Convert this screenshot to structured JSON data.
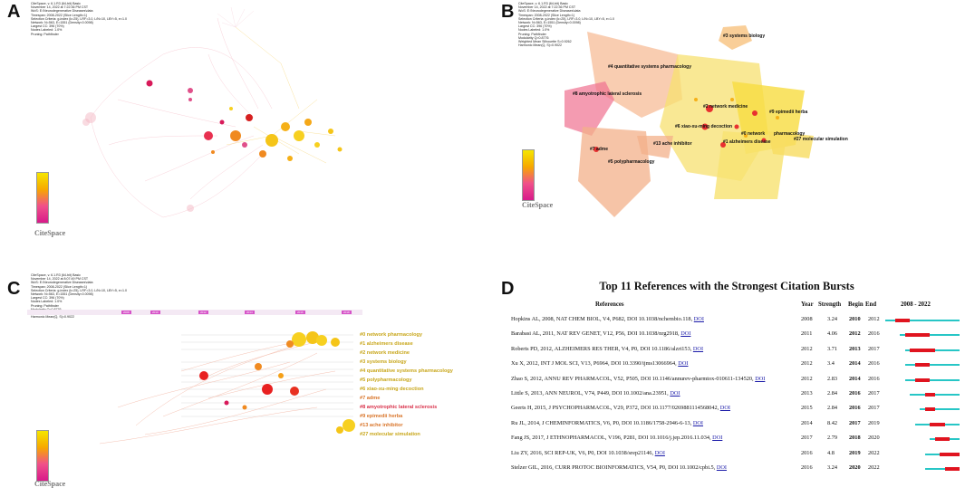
{
  "panels": {
    "a": {
      "letter": "A"
    },
    "b": {
      "letter": "B"
    },
    "c": {
      "letter": "C"
    },
    "d": {
      "letter": "D"
    }
  },
  "citespace_meta": {
    "a": [
      "CiteSpace, v. 6.1.R3 (64-bit) Basic",
      "November 14, 2022 at 7:22:36 PM CST",
      "WoS: E:\\Neurodegenerative Diseases\\data",
      "Timespan: 2008-2022 (Slice Length=1)",
      "Selection Criteria: g-index (k=25), LRF=3.0, L/N=10, LBY=5, e=1.0",
      "Network: N=563, E=1551 (Density=0.0098)",
      "Largest CC: 396 (70%)",
      "Nodes Labeled: 1.0%",
      "Pruning: Pathfinder"
    ],
    "b": [
      "CiteSpace, v. 6.1.R3 (64-bit) Basic",
      "November 14, 2022 at 7:22:36 PM CST",
      "WoS: E:\\Neurodegenerative Diseases\\data",
      "Timespan: 2008-2022 (Slice Length=1)",
      "Selection Criteria: g-index (k=25), LRF=3.0, L/N=10, LBY=5, e=1.0",
      "Network: N=563, E=1551 (Density=0.0098)",
      "Largest CC: 396 (70%)",
      "Nodes Labeled: 1.0%",
      "Pruning: Pathfinder",
      "Modularity Q=0.8776",
      "Weighted Mean Silhouette S=0.9262",
      "Harmonic Mean(Q, S)=0.9022"
    ],
    "c": [
      "CiteSpace, v. 6.1.R3 (64-bit) Basic",
      "November 14, 2022 at 8:07:49 PM CST",
      "WoS: E:\\Neurodegenerative Diseases\\data",
      "Timespan: 2008-2022 (Slice Length=1)",
      "Selection Criteria: g-index (k=25), LRF=3.0, L/N=10, LBY=5, e=1.0",
      "Network: N=563, E=1551 (Density=0.0098)",
      "Largest CC: 396 (70%)",
      "Nodes Labeled: 1.0%",
      "Pruning: Pathfinder",
      "Modularity Q=0.8776",
      "Weighted Mean Silhouette S=0.9262",
      "Harmonic Mean(Q, S)=0.9022"
    ]
  },
  "logo_text": "CiteSpace",
  "clusters_b": [
    "#3 systems biology",
    "#4 quantitative systems pharmacology",
    "#8 amyotrophic lateral sclerosis",
    "#2 network medicine",
    "#9 epimedii herba",
    "#6 xiao-xu-ming decoction",
    "#0 network",
    "pharmacology",
    "#1 alzheimers disease",
    "#27 molecular simulation",
    "#13 ache inhibitor",
    "#7 adme",
    "#5 polypharmacology"
  ],
  "clusters_c": [
    {
      "label": "#0 network   pharmacology",
      "color": "#c8a61a"
    },
    {
      "label": "#1 alzheimers disease",
      "color": "#c8a61a"
    },
    {
      "label": "#2 network medicine",
      "color": "#c8a61a"
    },
    {
      "label": "#3 systems biology",
      "color": "#c8a61a"
    },
    {
      "label": "#4 quantitative systems pharmacology",
      "color": "#c8a61a"
    },
    {
      "label": "#5 polypharmacology",
      "color": "#c8a61a"
    },
    {
      "label": "#6 xiao-xu-ming decoction",
      "color": "#c8a61a"
    },
    {
      "label": "#7 adme",
      "color": "#d9752a"
    },
    {
      "label": "#8 amyotrophic lateral sclerosis",
      "color": "#d9314a"
    },
    {
      "label": "#9 epimedii herba",
      "color": "#d9752a"
    },
    {
      "label": "#13 ache inhibitor",
      "color": "#d9752a"
    },
    {
      "label": "#27 molecular simulation",
      "color": "#c8a61a"
    }
  ],
  "timeline_years_c": [
    "2008",
    "2010",
    "2012",
    "2014",
    "2016",
    "2018",
    "2020"
  ],
  "bursts": {
    "title": "Top 11 References with the Strongest Citation Bursts",
    "headers": {
      "ref": "References",
      "year": "Year",
      "strength": "Strength",
      "begin": "Begin",
      "end": "End",
      "range": "2008 - 2022"
    },
    "range_start": 2008,
    "range_end": 2022,
    "rows": [
      {
        "ref": "Hopkins AL, 2008, NAT CHEM BIOL, V4, P682, DOI 10.1038/nchembio.118,",
        "link": "DOI",
        "year": "2008",
        "strength": "3.24",
        "begin": "2010",
        "end": "2012"
      },
      {
        "ref": "Barabasi AL, 2011, NAT REV GENET, V12, P56, DOI 10.1038/nrg2918,",
        "link": "DOI",
        "year": "2011",
        "strength": "4.06",
        "begin": "2012",
        "end": "2016"
      },
      {
        "ref": "Roberts PD, 2012, ALZHEIMERS RES THER, V4, P0, DOI 10.1186/alzrt153,",
        "link": "DOI",
        "year": "2012",
        "strength": "3.71",
        "begin": "2013",
        "end": "2017"
      },
      {
        "ref": "Xu X, 2012, INT J MOL SCI, V13, P6964, DOI 10.3390/ijms13066964,",
        "link": "DOI",
        "year": "2012",
        "strength": "3.4",
        "begin": "2014",
        "end": "2016"
      },
      {
        "ref": "Zhao S, 2012, ANNU REV PHARMACOL, V52, P505, DOI 10.1146/annurev-pharmtox-010611-134520,",
        "link": "DOI",
        "year": "2012",
        "strength": "2.83",
        "begin": "2014",
        "end": "2016"
      },
      {
        "ref": "Little S, 2013, ANN NEUROL, V74, P449, DOI 10.1002/ana.23951,",
        "link": "DOI",
        "year": "2013",
        "strength": "2.84",
        "begin": "2016",
        "end": "2017"
      },
      {
        "ref": "Geerts H, 2015, J PSYCHOPHARMACOL, V29, P372, DOI 10.1177/0269881114568042,",
        "link": "DOI",
        "year": "2015",
        "strength": "2.84",
        "begin": "2016",
        "end": "2017"
      },
      {
        "ref": "Ru JL, 2014, J CHEMINFORMATICS, V6, P0, DOI 10.1186/1758-2946-6-13,",
        "link": "DOI",
        "year": "2014",
        "strength": "8.42",
        "begin": "2017",
        "end": "2019"
      },
      {
        "ref": "Fang JS, 2017, J ETHNOPHARMACOL, V196, P281, DOI 10.1016/j.jep.2016.11.034,",
        "link": "DOI",
        "year": "2017",
        "strength": "2.79",
        "begin": "2018",
        "end": "2020"
      },
      {
        "ref": "Liu ZY, 2016, SCI REP-UK, V6, P0, DOI 10.1038/srep21146,",
        "link": "DOI",
        "year": "2016",
        "strength": "4.8",
        "begin": "2019",
        "end": "2022"
      },
      {
        "ref": "Stelzer GIL, 2016, CURR PROTOC BIOINFORMATICS, V54, P0, DOI 10.1002/cpbi.5,",
        "link": "DOI",
        "year": "2016",
        "strength": "3.24",
        "begin": "2020",
        "end": "2022"
      }
    ]
  },
  "colors": {
    "burst": "#e0141f",
    "baseline": "#27c6c6",
    "link": "#1a1aa8"
  }
}
